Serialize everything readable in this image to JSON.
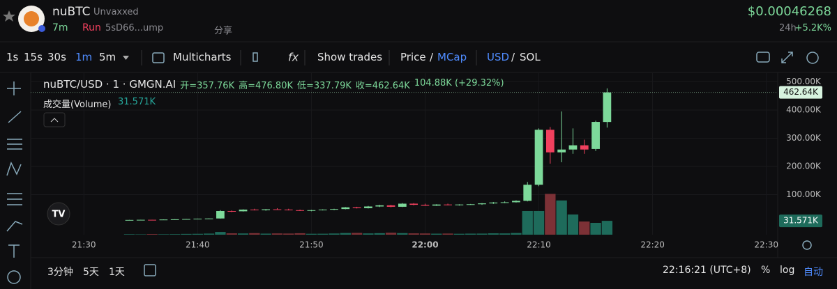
{
  "header": {
    "name": "nuBTC",
    "tag": "Unvaxxed",
    "age": "7m",
    "status": "Run",
    "address": "5sD66...ump",
    "share": "分享",
    "price": "$0.00046268",
    "period": "24h",
    "change": "+5.2K%"
  },
  "toolbar": {
    "intervals": [
      "1s",
      "15s",
      "30s",
      "1m",
      "5m"
    ],
    "multicharts": "Multicharts",
    "show_trades": "Show trades",
    "price": "Price",
    "mcap": "MCap",
    "usd": "USD",
    "sol": "SOL",
    "slash": "/"
  },
  "chart_data": {
    "type": "candlestick",
    "legend": {
      "symbol": "nuBTC/USD · 1 · GMGN.AI",
      "open": "开=357.76K",
      "high": "高=476.80K",
      "low": "低=337.79K",
      "close": "收=462.64K",
      "change": "104.88K (+29.32%)",
      "volume_title": "成交量(Volume)",
      "volume_value": "31.571K"
    },
    "x": [
      "21:34",
      "21:35",
      "21:36",
      "21:37",
      "21:38",
      "21:39",
      "21:40",
      "21:41",
      "21:42",
      "21:43",
      "21:44",
      "21:45",
      "21:46",
      "21:47",
      "21:48",
      "21:49",
      "21:50",
      "21:51",
      "21:52",
      "21:53",
      "21:54",
      "21:55",
      "21:56",
      "21:57",
      "21:58",
      "21:59",
      "22:00",
      "22:01",
      "22:02",
      "22:03",
      "22:04",
      "22:05",
      "22:06",
      "22:07",
      "22:08",
      "22:09",
      "22:10",
      "22:11",
      "22:12",
      "22:13",
      "22:14",
      "22:15",
      "22:16"
    ],
    "open": [
      10000,
      10300,
      10800,
      10700,
      11800,
      12600,
      13500,
      14800,
      15500,
      42000,
      41000,
      47000,
      45000,
      48000,
      47000,
      45000,
      43000,
      45000,
      47000,
      49000,
      55000,
      52000,
      58000,
      62000,
      57000,
      68000,
      64000,
      61000,
      65000,
      63000,
      65000,
      66000,
      69000,
      72000,
      73000,
      78000,
      135000,
      330000,
      250000,
      260000,
      275000,
      262000,
      357760
    ],
    "high": [
      10500,
      11000,
      11200,
      12000,
      13000,
      14000,
      15000,
      16000,
      45000,
      44000,
      48000,
      50000,
      49000,
      52000,
      50000,
      47000,
      46000,
      48000,
      50000,
      56000,
      57000,
      60000,
      64000,
      64000,
      70000,
      70000,
      68000,
      66000,
      68000,
      66000,
      67000,
      70000,
      74000,
      76000,
      80000,
      145000,
      335000,
      340000,
      395000,
      335000,
      295000,
      362000,
      476800
    ],
    "low": [
      9800,
      10200,
      10600,
      10600,
      11500,
      12400,
      13200,
      14000,
      15000,
      38000,
      40000,
      44000,
      43000,
      46000,
      44000,
      42000,
      41000,
      44000,
      45000,
      48000,
      51000,
      51000,
      56000,
      55000,
      56000,
      62000,
      60000,
      60000,
      62000,
      61000,
      64000,
      64000,
      67000,
      70000,
      72000,
      76000,
      130000,
      210000,
      215000,
      245000,
      245000,
      255000,
      337790
    ],
    "close": [
      10300,
      10800,
      10700,
      11800,
      12600,
      13500,
      14800,
      15500,
      42000,
      41000,
      47000,
      45000,
      48000,
      47000,
      45000,
      43000,
      45000,
      47000,
      49000,
      55000,
      52000,
      58000,
      62000,
      57000,
      68000,
      64000,
      61000,
      65000,
      63000,
      65000,
      66000,
      69000,
      72000,
      73000,
      78000,
      135000,
      330000,
      250000,
      260000,
      275000,
      260000,
      358000,
      462640
    ],
    "volume": [
      1200,
      900,
      1500,
      1100,
      1300,
      1800,
      2000,
      2500,
      6200,
      3100,
      2800,
      3500,
      2400,
      2900,
      2600,
      3300,
      2100,
      2200,
      2700,
      3800,
      4100,
      2900,
      3400,
      4500,
      3600,
      3000,
      2800,
      2300,
      2600,
      2100,
      2400,
      2500,
      3100,
      2900,
      3800,
      54000,
      54000,
      93000,
      78000,
      46000,
      30000,
      27000,
      31571
    ],
    "last_price_label": "462.64K",
    "last_volume_label": "31.571K",
    "up_color": "#7dd99a",
    "down_color": "#f2405e",
    "volume_up_color": "#1e6b5b",
    "volume_down_color": "#7c3136",
    "xlim": [
      "21:26",
      "22:31"
    ],
    "xticks": [
      "21:30",
      "21:40",
      "21:50",
      "22:00",
      "22:10",
      "22:20",
      "22:30"
    ],
    "ylim": [
      -42000,
      531000
    ],
    "yticks": [
      {
        "value": 100000,
        "label": "100.00K"
      },
      {
        "value": 200000,
        "label": "200.00K"
      },
      {
        "value": 300000,
        "label": "300.00K"
      },
      {
        "value": 400000,
        "label": "400.00K"
      },
      {
        "value": 500000,
        "label": "500.00K"
      }
    ],
    "volume_ylim": [
      0,
      100000
    ],
    "grid": true
  },
  "footer": {
    "ranges": [
      "3分钟",
      "5天",
      "1天"
    ],
    "time": "22:16:21 (UTC+8)",
    "percent": "%",
    "log": "log",
    "auto": "自动"
  }
}
